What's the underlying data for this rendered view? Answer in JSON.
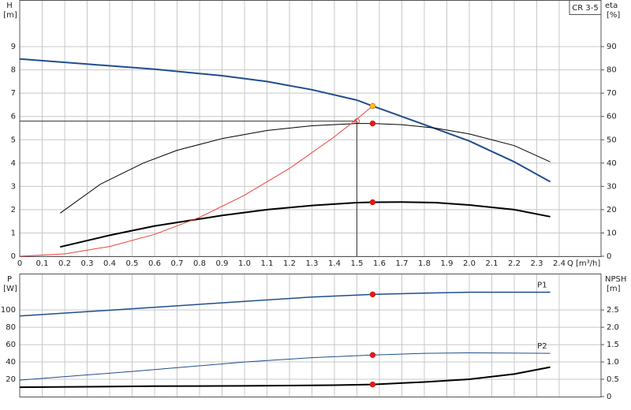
{
  "chart_data": [
    {
      "type": "line",
      "title": "CR 3-5",
      "ylabel": "H",
      "yunit": "[m]",
      "y2label": "eta",
      "y2unit": "[%]",
      "xlabel": "Q [m³/h]",
      "xlim": [
        0,
        2.586
      ],
      "ylim": [
        0,
        11
      ],
      "y2lim": [
        0,
        110
      ],
      "grid": true,
      "show_xtick_labels": true,
      "xticks": [
        0,
        0.1,
        0.2,
        0.3,
        0.4,
        0.5,
        0.6,
        0.7,
        0.8,
        0.9,
        {
          "value": 1,
          "label": "1.0"
        },
        1.1,
        1.2,
        1.3,
        1.4,
        1.5,
        1.6,
        1.7,
        1.8,
        1.9,
        {
          "value": 2,
          "label": "2.0"
        },
        2.1,
        2.2,
        2.3,
        2.4
      ],
      "yticks": [
        0,
        1,
        2,
        3,
        4,
        5,
        6,
        7,
        8,
        9
      ],
      "y2ticks": [
        0,
        10,
        20,
        30,
        40,
        50,
        60,
        70,
        80,
        90
      ],
      "series": [
        {
          "color": "#1f4e8c",
          "line_width": 2,
          "axis": "y",
          "x": [
            0,
            0.3,
            0.6,
            0.9,
            1.1,
            1.3,
            1.5,
            1.57,
            1.8,
            2.0,
            2.2,
            2.36
          ],
          "values": [
            8.47,
            8.25,
            8.03,
            7.75,
            7.5,
            7.15,
            6.7,
            6.45,
            5.65,
            4.95,
            4.05,
            3.2
          ]
        },
        {
          "color": "#000000",
          "line_width": 1,
          "axis": "y2",
          "x": [
            0.18,
            0.36,
            0.55,
            0.7,
            0.9,
            1.1,
            1.3,
            1.5,
            1.57,
            1.7,
            1.85,
            2.0,
            2.2,
            2.36
          ],
          "values": [
            18.5,
            31,
            40,
            45.5,
            50.5,
            54,
            56,
            57,
            57,
            56.5,
            55,
            52.5,
            47.5,
            40.5
          ]
        },
        {
          "color": "#000000",
          "line_width": 2,
          "axis": "y2",
          "x": [
            0.18,
            0.4,
            0.6,
            0.9,
            1.1,
            1.3,
            1.5,
            1.57,
            1.7,
            1.85,
            2.0,
            2.2,
            2.36
          ],
          "values": [
            4,
            9,
            13,
            17.5,
            20,
            21.8,
            23,
            23.2,
            23.3,
            23,
            22,
            20,
            17
          ]
        },
        {
          "color": "#e8413c",
          "line_width": 1,
          "axis": "y",
          "x": [
            0,
            0.2,
            0.4,
            0.6,
            0.8,
            1.0,
            1.2,
            1.4,
            1.5,
            1.57
          ],
          "values": [
            0,
            0.1,
            0.42,
            0.94,
            1.67,
            2.62,
            3.77,
            5.13,
            5.89,
            6.45
          ]
        }
      ],
      "duty_point": {
        "x": 1.5,
        "y": 5.8,
        "color": "#e8413c"
      },
      "points": [
        {
          "x": 1.57,
          "y": 6.45,
          "axis": "y",
          "color": "#f5c518"
        },
        {
          "x": 1.57,
          "y": 57,
          "axis": "y2",
          "color": "#e8161b"
        },
        {
          "x": 1.57,
          "y": 23.2,
          "axis": "y2",
          "color": "#e8161b"
        }
      ]
    },
    {
      "type": "line",
      "ylabel": "P",
      "yunit": "[W]",
      "y2label": "NPSH",
      "y2unit": "[m]",
      "xlim": [
        0,
        2.586
      ],
      "ylim": [
        0,
        142
      ],
      "y2lim": [
        0,
        3.55
      ],
      "grid": true,
      "show_xtick_labels": false,
      "xticks": [
        0,
        0.1,
        0.2,
        0.3,
        0.4,
        0.5,
        0.6,
        0.7,
        0.8,
        0.9,
        1,
        1.1,
        1.2,
        1.3,
        1.4,
        1.5,
        1.6,
        1.7,
        1.8,
        1.9,
        2,
        2.1,
        2.2,
        2.3,
        2.4
      ],
      "yticks": [
        20,
        40,
        60,
        80,
        100
      ],
      "y2ticks": [
        0,
        0.5,
        {
          "value": 1,
          "label": "1.0"
        },
        1.5,
        {
          "value": 2,
          "label": "2.0"
        },
        2.5
      ],
      "series": [
        {
          "name": "P1",
          "color": "#1f4e8c",
          "line_width": 1.5,
          "axis": "y",
          "x": [
            0,
            0.6,
            1.0,
            1.3,
            1.57,
            1.8,
            2.0,
            2.36
          ],
          "values": [
            93,
            103,
            110,
            115,
            118,
            119.5,
            120.5,
            120.5
          ]
        },
        {
          "name": "P2",
          "color": "#1f4e8c",
          "line_width": 1,
          "axis": "y",
          "x": [
            0,
            0.5,
            1.0,
            1.3,
            1.57,
            1.8,
            2.0,
            2.36
          ],
          "values": [
            19,
            29,
            40,
            45,
            48,
            50,
            50.5,
            50
          ]
        },
        {
          "color": "#000000",
          "line_width": 2,
          "axis": "y2",
          "x": [
            0,
            0.6,
            1.0,
            1.4,
            1.57,
            1.8,
            2.0,
            2.2,
            2.36
          ],
          "values": [
            0.27,
            0.3,
            0.31,
            0.33,
            0.35,
            0.42,
            0.5,
            0.65,
            0.85
          ]
        }
      ],
      "points": [
        {
          "x": 1.57,
          "y": 118,
          "axis": "y",
          "color": "#e8161b"
        },
        {
          "x": 1.57,
          "y": 48,
          "axis": "y",
          "color": "#e8161b"
        },
        {
          "x": 1.57,
          "y": 0.35,
          "axis": "y2",
          "color": "#e8161b"
        }
      ]
    }
  ]
}
